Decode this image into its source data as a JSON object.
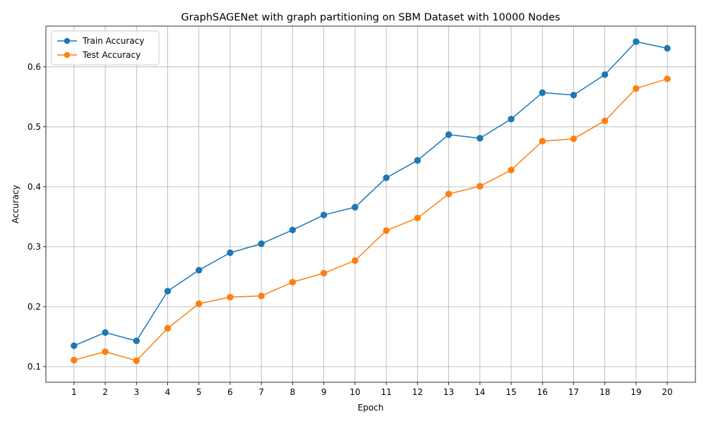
{
  "chart_data": {
    "type": "line",
    "title": "GraphSAGENet with graph partitioning on SBM Dataset with 10000 Nodes",
    "xlabel": "Epoch",
    "ylabel": "Accuracy",
    "x": [
      1,
      2,
      3,
      4,
      5,
      6,
      7,
      8,
      9,
      10,
      11,
      12,
      13,
      14,
      15,
      16,
      17,
      18,
      19,
      20
    ],
    "xlim": [
      0.1,
      20.9
    ],
    "ylim": [
      0.074,
      0.668
    ],
    "yticks": [
      0.1,
      0.2,
      0.3,
      0.4,
      0.5,
      0.6
    ],
    "ytick_labels": [
      "0.1",
      "0.2",
      "0.3",
      "0.4",
      "0.5",
      "0.6"
    ],
    "xtick_labels": [
      "1",
      "2",
      "3",
      "4",
      "5",
      "6",
      "7",
      "8",
      "9",
      "10",
      "11",
      "12",
      "13",
      "14",
      "15",
      "16",
      "17",
      "18",
      "19",
      "20"
    ],
    "grid": true,
    "legend_position": "upper-left",
    "series": [
      {
        "name": "Train Accuracy",
        "color": "#1f77b4",
        "marker": "circle",
        "values": [
          0.135,
          0.157,
          0.143,
          0.226,
          0.261,
          0.29,
          0.305,
          0.328,
          0.353,
          0.366,
          0.415,
          0.444,
          0.487,
          0.481,
          0.513,
          0.557,
          0.553,
          0.587,
          0.642,
          0.631
        ]
      },
      {
        "name": "Test Accuracy",
        "color": "#ff7f0e",
        "marker": "circle",
        "values": [
          0.111,
          0.125,
          0.11,
          0.164,
          0.205,
          0.216,
          0.218,
          0.241,
          0.256,
          0.277,
          0.327,
          0.348,
          0.388,
          0.401,
          0.428,
          0.476,
          0.48,
          0.51,
          0.564,
          0.58
        ]
      }
    ]
  }
}
